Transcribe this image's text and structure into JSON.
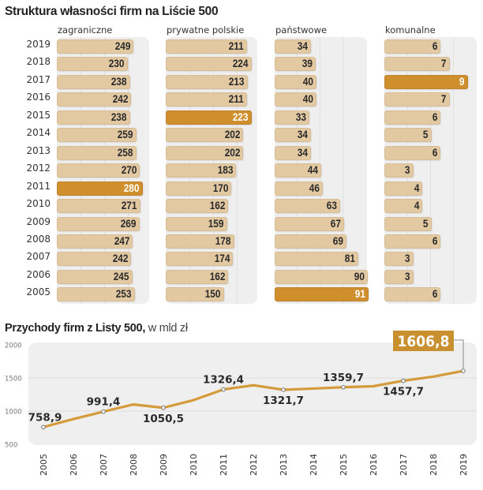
{
  "chart_data": [
    {
      "type": "bar",
      "orientation": "horizontal",
      "title": "Struktura własności firm na  Liście 500",
      "categories": [
        "2019",
        "2018",
        "2017",
        "2016",
        "2015",
        "2014",
        "2013",
        "2012",
        "2011",
        "2010",
        "2009",
        "2008",
        "2007",
        "2006",
        "2005"
      ],
      "series": [
        {
          "name": "zagraniczne",
          "values": [
            249,
            230,
            238,
            242,
            238,
            259,
            258,
            270,
            280,
            271,
            269,
            247,
            242,
            245,
            253
          ],
          "highlight_index": 8
        },
        {
          "name": "prywatne polskie",
          "values": [
            211,
            224,
            213,
            211,
            223,
            202,
            202,
            183,
            170,
            162,
            159,
            178,
            174,
            162,
            150
          ],
          "highlight_index": 4
        },
        {
          "name": "państwowe",
          "values": [
            34,
            39,
            40,
            40,
            33,
            34,
            34,
            44,
            46,
            63,
            67,
            69,
            81,
            90,
            91
          ],
          "highlight_index": 14
        },
        {
          "name": "komunalne",
          "values": [
            6,
            7,
            9,
            7,
            6,
            5,
            6,
            3,
            4,
            4,
            5,
            6,
            3,
            3,
            6
          ],
          "highlight_index": 2
        }
      ],
      "colors": {
        "bar": "#e3c9a2",
        "highlight": "#cf8f2c",
        "panel": "#efefef"
      }
    },
    {
      "type": "line",
      "title": "Przychody firm z Listy 500,",
      "subtitle": "w mld zł",
      "x": [
        "2005",
        "2006",
        "2007",
        "2008",
        "2009",
        "2010",
        "2011",
        "2012",
        "2013",
        "2014",
        "2015",
        "2016",
        "2017",
        "2018",
        "2019"
      ],
      "series": [
        {
          "name": "Przychody",
          "values": [
            758.9,
            880,
            991.4,
            1100,
            1050.5,
            1165,
            1326.4,
            1390,
            1321.7,
            1340,
            1359.7,
            1375,
            1457.7,
            1520,
            1606.8
          ]
        }
      ],
      "data_labels": [
        {
          "x": "2005",
          "text": "758,9",
          "position": "above"
        },
        {
          "x": "2007",
          "text": "991,4",
          "position": "above"
        },
        {
          "x": "2009",
          "text": "1050,5",
          "position": "below"
        },
        {
          "x": "2011",
          "text": "1326,4",
          "position": "above"
        },
        {
          "x": "2013",
          "text": "1321,7",
          "position": "below"
        },
        {
          "x": "2015",
          "text": "1359,7",
          "position": "above"
        },
        {
          "x": "2017",
          "text": "1457,7",
          "position": "below"
        },
        {
          "x": "2019",
          "text": "1606,8",
          "position": "callout"
        }
      ],
      "yticks": [
        "2000",
        "1500",
        "1000",
        "500"
      ],
      "ylim": [
        500,
        2000
      ],
      "grid": true,
      "colors": {
        "line": "#d59b3b",
        "callout": "#c8902f",
        "panel": "#efefef"
      }
    }
  ]
}
